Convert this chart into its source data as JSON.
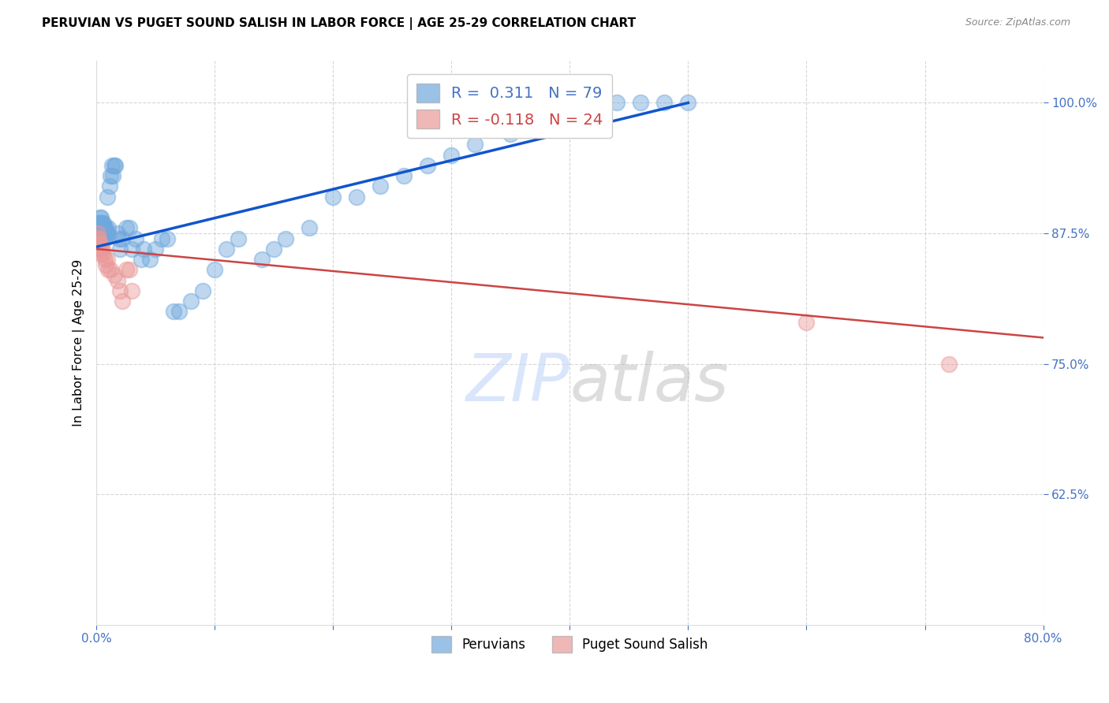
{
  "title": "PERUVIAN VS PUGET SOUND SALISH IN LABOR FORCE | AGE 25-29 CORRELATION CHART",
  "source": "Source: ZipAtlas.com",
  "ylabel_label": "In Labor Force | Age 25-29",
  "xlim": [
    0.0,
    0.8
  ],
  "ylim": [
    0.5,
    1.04
  ],
  "xticks": [
    0.0,
    0.1,
    0.2,
    0.3,
    0.4,
    0.5,
    0.6,
    0.7,
    0.8
  ],
  "xticklabels": [
    "0.0%",
    "",
    "",
    "",
    "",
    "",
    "",
    "",
    "80.0%"
  ],
  "yticks": [
    0.625,
    0.75,
    0.875,
    1.0
  ],
  "yticklabels": [
    "62.5%",
    "75.0%",
    "87.5%",
    "100.0%"
  ],
  "blue_R": 0.311,
  "blue_N": 79,
  "pink_R": -0.118,
  "pink_N": 24,
  "blue_color": "#6fa8dc",
  "pink_color": "#ea9999",
  "blue_line_color": "#1155cc",
  "pink_line_color": "#cc4444",
  "watermark_color": "#c9daf8",
  "legend_label_blue": "Peruvians",
  "legend_label_pink": "Puget Sound Salish",
  "blue_x": [
    0.001,
    0.001,
    0.001,
    0.001,
    0.002,
    0.002,
    0.002,
    0.002,
    0.003,
    0.003,
    0.003,
    0.003,
    0.003,
    0.004,
    0.004,
    0.004,
    0.004,
    0.004,
    0.005,
    0.005,
    0.005,
    0.006,
    0.006,
    0.006,
    0.007,
    0.007,
    0.007,
    0.008,
    0.008,
    0.009,
    0.009,
    0.01,
    0.01,
    0.011,
    0.012,
    0.013,
    0.014,
    0.015,
    0.016,
    0.018,
    0.019,
    0.02,
    0.022,
    0.025,
    0.028,
    0.03,
    0.033,
    0.038,
    0.04,
    0.045,
    0.05,
    0.055,
    0.06,
    0.065,
    0.07,
    0.08,
    0.09,
    0.1,
    0.11,
    0.12,
    0.14,
    0.15,
    0.16,
    0.18,
    0.2,
    0.22,
    0.24,
    0.26,
    0.28,
    0.3,
    0.32,
    0.35,
    0.38,
    0.4,
    0.42,
    0.44,
    0.46,
    0.48,
    0.5
  ],
  "blue_y": [
    0.875,
    0.875,
    0.88,
    0.885,
    0.87,
    0.875,
    0.88,
    0.885,
    0.87,
    0.875,
    0.88,
    0.885,
    0.89,
    0.87,
    0.875,
    0.88,
    0.885,
    0.89,
    0.875,
    0.88,
    0.885,
    0.875,
    0.88,
    0.885,
    0.87,
    0.875,
    0.88,
    0.875,
    0.88,
    0.875,
    0.91,
    0.875,
    0.88,
    0.92,
    0.93,
    0.94,
    0.93,
    0.94,
    0.94,
    0.875,
    0.87,
    0.86,
    0.87,
    0.88,
    0.88,
    0.86,
    0.87,
    0.85,
    0.86,
    0.85,
    0.86,
    0.87,
    0.87,
    0.8,
    0.8,
    0.81,
    0.82,
    0.84,
    0.86,
    0.87,
    0.85,
    0.86,
    0.87,
    0.88,
    0.91,
    0.91,
    0.92,
    0.93,
    0.94,
    0.95,
    0.96,
    0.97,
    0.98,
    0.99,
    1.0,
    1.0,
    1.0,
    1.0,
    1.0
  ],
  "pink_x": [
    0.001,
    0.001,
    0.002,
    0.002,
    0.003,
    0.003,
    0.004,
    0.004,
    0.005,
    0.006,
    0.007,
    0.008,
    0.009,
    0.01,
    0.012,
    0.015,
    0.018,
    0.02,
    0.022,
    0.025,
    0.028,
    0.03,
    0.6,
    0.72
  ],
  "pink_y": [
    0.875,
    0.87,
    0.87,
    0.865,
    0.865,
    0.86,
    0.855,
    0.86,
    0.86,
    0.855,
    0.85,
    0.845,
    0.85,
    0.84,
    0.84,
    0.835,
    0.83,
    0.82,
    0.81,
    0.84,
    0.84,
    0.82,
    0.79,
    0.75
  ],
  "blue_trendline_x": [
    0.0,
    0.5
  ],
  "blue_trendline_y": [
    0.862,
    1.0
  ],
  "pink_trendline_x": [
    0.0,
    0.8
  ],
  "pink_trendline_y": [
    0.86,
    0.775
  ]
}
